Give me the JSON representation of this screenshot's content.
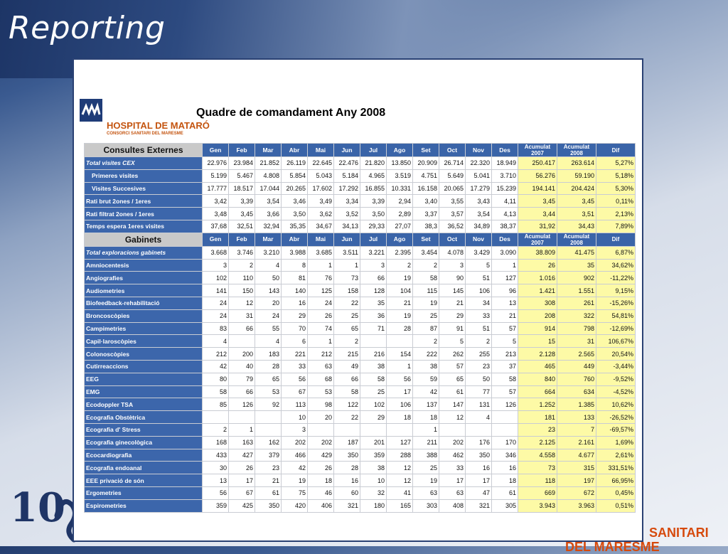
{
  "slide": {
    "title": "Reporting",
    "brand_line1": "SANITARI",
    "brand_line2": "DEL MARESME",
    "logo_ten": "10"
  },
  "report": {
    "hospital_name": "HOSPITAL DE MATARÓ",
    "hospital_sub": "CONSORCI SANITARI DEL MARESME",
    "title": "Quadre de comandament Any 2008",
    "columns": [
      "Gen",
      "Feb",
      "Mar",
      "Abr",
      "Mai",
      "Jun",
      "Jul",
      "Ago",
      "Set",
      "Oct",
      "Nov",
      "Des"
    ],
    "acc2007": "Acumulat 2007",
    "acc2008": "Acumulat 2008",
    "dif": "Dif",
    "sections": [
      {
        "name": "Consultes Externes",
        "rows": [
          {
            "label": "Total visites CEX",
            "style": "ital",
            "v": [
              "22.976",
              "23.984",
              "21.852",
              "26.119",
              "22.645",
              "22.476",
              "21.820",
              "13.850",
              "20.909",
              "26.714",
              "22.320",
              "18.949"
            ],
            "a7": "250.417",
            "a8": "263.614",
            "d": "5,27%"
          },
          {
            "label": "Primeres visites",
            "style": "ind",
            "v": [
              "5.199",
              "5.467",
              "4.808",
              "5.854",
              "5.043",
              "5.184",
              "4.965",
              "3.519",
              "4.751",
              "5.649",
              "5.041",
              "3.710"
            ],
            "a7": "56.276",
            "a8": "59.190",
            "d": "5,18%"
          },
          {
            "label": "Visites Succesives",
            "style": "ind",
            "v": [
              "17.777",
              "18.517",
              "17.044",
              "20.265",
              "17.602",
              "17.292",
              "16.855",
              "10.331",
              "16.158",
              "20.065",
              "17.279",
              "15.239"
            ],
            "a7": "194.141",
            "a8": "204.424",
            "d": "5,30%"
          },
          {
            "label": "Rati brut 2ones / 1eres",
            "style": "",
            "v": [
              "3,42",
              "3,39",
              "3,54",
              "3,46",
              "3,49",
              "3,34",
              "3,39",
              "2,94",
              "3,40",
              "3,55",
              "3,43",
              "4,11"
            ],
            "a7": "3,45",
            "a8": "3,45",
            "d": "0,11%"
          },
          {
            "label": "Rati filtrat 2ones / 1eres",
            "style": "",
            "v": [
              "3,48",
              "3,45",
              "3,66",
              "3,50",
              "3,62",
              "3,52",
              "3,50",
              "2,89",
              "3,37",
              "3,57",
              "3,54",
              "4,13"
            ],
            "a7": "3,44",
            "a8": "3,51",
            "d": "2,13%"
          },
          {
            "label": "Temps espera 1eres visites",
            "style": "",
            "v": [
              "37,68",
              "32,51",
              "32,94",
              "35,35",
              "34,67",
              "34,13",
              "29,33",
              "27,07",
              "38,3",
              "36,52",
              "34,89",
              "38,37"
            ],
            "a7": "31,92",
            "a8": "34,43",
            "d": "7,89%"
          }
        ]
      },
      {
        "name": "Gabinets",
        "rows": [
          {
            "label": "Total exploracions gabinets",
            "style": "ital",
            "v": [
              "3.668",
              "3.746",
              "3.210",
              "3.988",
              "3.685",
              "3.511",
              "3.221",
              "2.395",
              "3.454",
              "4.078",
              "3.429",
              "3.090"
            ],
            "a7": "38.809",
            "a8": "41.475",
            "d": "6,87%"
          },
          {
            "label": "Amniocentesis",
            "style": "",
            "v": [
              "3",
              "2",
              "4",
              "8",
              "1",
              "1",
              "3",
              "2",
              "2",
              "3",
              "5",
              "1"
            ],
            "a7": "26",
            "a8": "35",
            "d": "34,62%"
          },
          {
            "label": "Angiografies",
            "style": "",
            "v": [
              "102",
              "110",
              "50",
              "81",
              "76",
              "73",
              "66",
              "19",
              "58",
              "90",
              "51",
              "127"
            ],
            "a7": "1.016",
            "a8": "902",
            "d": "-11,22%"
          },
          {
            "label": "Audiometries",
            "style": "",
            "v": [
              "141",
              "150",
              "143",
              "140",
              "125",
              "158",
              "128",
              "104",
              "115",
              "145",
              "106",
              "96"
            ],
            "a7": "1.421",
            "a8": "1.551",
            "d": "9,15%"
          },
          {
            "label": "Biofeedback-rehabilitació",
            "style": "",
            "v": [
              "24",
              "12",
              "20",
              "16",
              "24",
              "22",
              "35",
              "21",
              "19",
              "21",
              "34",
              "13"
            ],
            "a7": "308",
            "a8": "261",
            "d": "-15,26%"
          },
          {
            "label": "Broncoscòpies",
            "style": "",
            "v": [
              "24",
              "31",
              "24",
              "29",
              "26",
              "25",
              "36",
              "19",
              "25",
              "29",
              "33",
              "21"
            ],
            "a7": "208",
            "a8": "322",
            "d": "54,81%"
          },
          {
            "label": "Campimetries",
            "style": "",
            "v": [
              "83",
              "66",
              "55",
              "70",
              "74",
              "65",
              "71",
              "28",
              "87",
              "91",
              "51",
              "57"
            ],
            "a7": "914",
            "a8": "798",
            "d": "-12,69%"
          },
          {
            "label": "Capil·laroscòpies",
            "style": "",
            "v": [
              "4",
              "",
              "4",
              "6",
              "1",
              "2",
              "",
              "",
              "2",
              "5",
              "2",
              "5"
            ],
            "a7": "15",
            "a8": "31",
            "d": "106,67%"
          },
          {
            "label": "Colonoscòpies",
            "style": "",
            "v": [
              "212",
              "200",
              "183",
              "221",
              "212",
              "215",
              "216",
              "154",
              "222",
              "262",
              "255",
              "213"
            ],
            "a7": "2.128",
            "a8": "2.565",
            "d": "20,54%"
          },
          {
            "label": "Cutirreaccions",
            "style": "",
            "v": [
              "42",
              "40",
              "28",
              "33",
              "63",
              "49",
              "38",
              "1",
              "38",
              "57",
              "23",
              "37"
            ],
            "a7": "465",
            "a8": "449",
            "d": "-3,44%"
          },
          {
            "label": "EEG",
            "style": "",
            "v": [
              "80",
              "79",
              "65",
              "56",
              "68",
              "66",
              "58",
              "56",
              "59",
              "65",
              "50",
              "58"
            ],
            "a7": "840",
            "a8": "760",
            "d": "-9,52%"
          },
          {
            "label": "EMG",
            "style": "",
            "v": [
              "58",
              "66",
              "53",
              "67",
              "53",
              "58",
              "25",
              "17",
              "42",
              "61",
              "77",
              "57"
            ],
            "a7": "664",
            "a8": "634",
            "d": "-4,52%"
          },
          {
            "label": "Ecodoppler TSA",
            "style": "",
            "v": [
              "85",
              "126",
              "92",
              "113",
              "98",
              "122",
              "102",
              "106",
              "137",
              "147",
              "131",
              "126"
            ],
            "a7": "1.252",
            "a8": "1.385",
            "d": "10,62%"
          },
          {
            "label": "Ecografia Obstètrica",
            "style": "",
            "v": [
              "",
              "",
              "",
              "10",
              "20",
              "22",
              "29",
              "18",
              "18",
              "12",
              "4",
              ""
            ],
            "a7": "181",
            "a8": "133",
            "d": "-26,52%"
          },
          {
            "label": "Ecografia d' Stress",
            "style": "",
            "v": [
              "2",
              "1",
              "",
              "3",
              "",
              "",
              "",
              "",
              "1",
              "",
              "",
              ""
            ],
            "a7": "23",
            "a8": "7",
            "d": "-69,57%"
          },
          {
            "label": "Ecografia ginecològica",
            "style": "",
            "v": [
              "168",
              "163",
              "162",
              "202",
              "202",
              "187",
              "201",
              "127",
              "211",
              "202",
              "176",
              "170"
            ],
            "a7": "2.125",
            "a8": "2.161",
            "d": "1,69%"
          },
          {
            "label": "Ecocardiografia",
            "style": "",
            "v": [
              "433",
              "427",
              "379",
              "466",
              "429",
              "350",
              "359",
              "288",
              "388",
              "462",
              "350",
              "346"
            ],
            "a7": "4.558",
            "a8": "4.677",
            "d": "2,61%"
          },
          {
            "label": "Ecografia endoanal",
            "style": "",
            "v": [
              "30",
              "26",
              "23",
              "42",
              "26",
              "28",
              "38",
              "12",
              "25",
              "33",
              "16",
              "16"
            ],
            "a7": "73",
            "a8": "315",
            "d": "331,51%"
          },
          {
            "label": "EEE privació de són",
            "style": "",
            "v": [
              "13",
              "17",
              "21",
              "19",
              "18",
              "16",
              "10",
              "12",
              "19",
              "17",
              "17",
              "18"
            ],
            "a7": "118",
            "a8": "197",
            "d": "66,95%"
          },
          {
            "label": "Ergometries",
            "style": "",
            "v": [
              "56",
              "67",
              "61",
              "75",
              "46",
              "60",
              "32",
              "41",
              "63",
              "63",
              "47",
              "61"
            ],
            "a7": "669",
            "a8": "672",
            "d": "0,45%"
          },
          {
            "label": "Espirometries",
            "style": "",
            "v": [
              "359",
              "425",
              "350",
              "420",
              "406",
              "321",
              "180",
              "165",
              "303",
              "408",
              "321",
              "305"
            ],
            "a7": "3.943",
            "a8": "3.963",
            "d": "0,51%"
          }
        ]
      }
    ]
  },
  "colors": {
    "header_blue": "#3a64a8",
    "highlight_yellow": "#fdfaa6",
    "brand_orange": "#d64a0d",
    "slide_dark_blue": "#1d3566"
  }
}
